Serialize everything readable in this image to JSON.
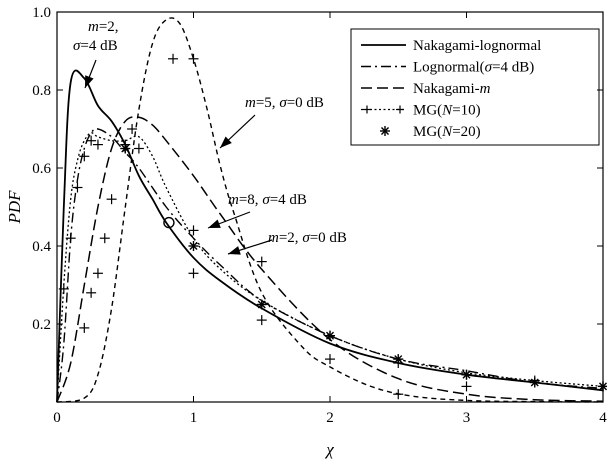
{
  "chart_data": {
    "type": "line",
    "xlabel": "χ",
    "ylabel": "PDF",
    "xlim": [
      0,
      4
    ],
    "ylim": [
      0,
      1.0
    ],
    "x_ticks": [
      "0",
      "1",
      "2",
      "3",
      "4"
    ],
    "y_ticks": [
      "0.2",
      "0.4",
      "0.6",
      "0.8",
      "1.0"
    ],
    "legend_position": "top-right",
    "legend": [
      {
        "label": "Nakagami-lognormal",
        "style": "solid"
      },
      {
        "label": "Lognormal(σ=4 dB)",
        "style": "dashdot"
      },
      {
        "label": "Nakagami-m",
        "style": "dashed"
      },
      {
        "label": "MG(N=10)",
        "style": "dotted-plus"
      },
      {
        "label": "MG(N=20)",
        "style": "asterisk"
      }
    ],
    "annotations": [
      {
        "line1": "m=2,",
        "line2": "σ=4 dB",
        "x": 0.2,
        "y": 0.83
      },
      {
        "text": "m=5, σ=0 dB",
        "x": 0.75,
        "y": 0.95
      },
      {
        "text": "m=8, σ=4 dB",
        "x": 0.82,
        "y": 0.46
      },
      {
        "text": "m=2, σ=0 dB",
        "x": 1.25,
        "y": 0.4
      }
    ],
    "series": [
      {
        "name": "Nakagami-lognormal",
        "style": "solid",
        "points": [
          [
            0,
            0
          ],
          [
            0.05,
            0.5
          ],
          [
            0.1,
            0.82
          ],
          [
            0.2,
            0.83
          ],
          [
            0.3,
            0.76
          ],
          [
            0.4,
            0.72
          ],
          [
            0.5,
            0.66
          ],
          [
            0.6,
            0.58
          ],
          [
            0.7,
            0.52
          ],
          [
            0.8,
            0.46
          ],
          [
            1.0,
            0.37
          ],
          [
            1.2,
            0.31
          ],
          [
            1.5,
            0.24
          ],
          [
            2.0,
            0.15
          ],
          [
            2.5,
            0.1
          ],
          [
            3.0,
            0.07
          ],
          [
            3.5,
            0.05
          ],
          [
            4.0,
            0.03
          ]
        ]
      },
      {
        "name": "Lognormal(σ=4 dB)",
        "style": "dashdot",
        "points": [
          [
            0,
            0
          ],
          [
            0.05,
            0.15
          ],
          [
            0.1,
            0.42
          ],
          [
            0.15,
            0.57
          ],
          [
            0.2,
            0.65
          ],
          [
            0.25,
            0.69
          ],
          [
            0.3,
            0.7
          ],
          [
            0.4,
            0.68
          ],
          [
            0.5,
            0.64
          ],
          [
            0.6,
            0.6
          ],
          [
            0.8,
            0.5
          ],
          [
            1.0,
            0.42
          ],
          [
            1.2,
            0.35
          ],
          [
            1.5,
            0.26
          ],
          [
            2.0,
            0.17
          ],
          [
            2.5,
            0.11
          ],
          [
            3.0,
            0.08
          ],
          [
            3.5,
            0.05
          ],
          [
            4.0,
            0.035
          ]
        ]
      },
      {
        "name": "Nakagami-m (m=2, σ=0 dB)",
        "style": "dashed",
        "points": [
          [
            0,
            0
          ],
          [
            0.1,
            0.1
          ],
          [
            0.2,
            0.3
          ],
          [
            0.3,
            0.5
          ],
          [
            0.4,
            0.65
          ],
          [
            0.5,
            0.72
          ],
          [
            0.6,
            0.73
          ],
          [
            0.7,
            0.71
          ],
          [
            0.8,
            0.67
          ],
          [
            1.0,
            0.58
          ],
          [
            1.2,
            0.48
          ],
          [
            1.5,
            0.34
          ],
          [
            2.0,
            0.16
          ],
          [
            2.5,
            0.06
          ],
          [
            3.0,
            0.02
          ],
          [
            3.5,
            0.006
          ],
          [
            4.0,
            0.002
          ]
        ]
      },
      {
        "name": "Nakagami-m (m=5, σ=0 dB)",
        "style": "dashed-short",
        "points": [
          [
            0,
            0
          ],
          [
            0.2,
            0.01
          ],
          [
            0.3,
            0.07
          ],
          [
            0.4,
            0.24
          ],
          [
            0.5,
            0.5
          ],
          [
            0.6,
            0.75
          ],
          [
            0.7,
            0.92
          ],
          [
            0.8,
            0.98
          ],
          [
            0.9,
            0.97
          ],
          [
            1.0,
            0.88
          ],
          [
            1.1,
            0.75
          ],
          [
            1.2,
            0.6
          ],
          [
            1.3,
            0.48
          ],
          [
            1.5,
            0.28
          ],
          [
            1.8,
            0.14
          ],
          [
            2.0,
            0.09
          ],
          [
            2.3,
            0.04
          ],
          [
            2.6,
            0.015
          ],
          [
            3.0,
            0.004
          ],
          [
            3.5,
            0.001
          ],
          [
            4.0,
            0
          ]
        ]
      },
      {
        "name": "MG(N=10)",
        "style": "dotted-plus",
        "points": [
          [
            0,
            0
          ],
          [
            0.05,
            0.3
          ],
          [
            0.1,
            0.52
          ],
          [
            0.15,
            0.62
          ],
          [
            0.2,
            0.67
          ],
          [
            0.25,
            0.69
          ],
          [
            0.3,
            0.68
          ],
          [
            0.4,
            0.67
          ],
          [
            0.5,
            0.67
          ],
          [
            0.6,
            0.68
          ],
          [
            0.7,
            0.63
          ],
          [
            0.8,
            0.55
          ],
          [
            1.0,
            0.42
          ],
          [
            1.2,
            0.34
          ],
          [
            1.5,
            0.26
          ],
          [
            2.0,
            0.17
          ],
          [
            2.5,
            0.11
          ],
          [
            3.0,
            0.075
          ],
          [
            3.5,
            0.055
          ],
          [
            4.0,
            0.04
          ]
        ]
      }
    ],
    "plus_markers": [
      [
        0.05,
        0.29
      ],
      [
        0.1,
        0.42
      ],
      [
        0.15,
        0.55
      ],
      [
        0.2,
        0.63
      ],
      [
        0.25,
        0.67
      ],
      [
        0.3,
        0.66
      ],
      [
        0.2,
        0.19
      ],
      [
        0.25,
        0.28
      ],
      [
        0.3,
        0.33
      ],
      [
        0.35,
        0.42
      ],
      [
        0.4,
        0.52
      ],
      [
        0.5,
        0.66
      ],
      [
        0.55,
        0.7
      ],
      [
        0.6,
        0.65
      ],
      [
        1.0,
        0.44
      ],
      [
        1.0,
        0.33
      ],
      [
        0.85,
        0.88
      ],
      [
        1.0,
        0.88
      ],
      [
        1.5,
        0.36
      ],
      [
        1.5,
        0.21
      ],
      [
        2.0,
        0.17
      ],
      [
        2.0,
        0.11
      ],
      [
        2.5,
        0.1
      ],
      [
        2.5,
        0.02
      ],
      [
        3.0,
        0.07
      ],
      [
        3.0,
        0.04
      ],
      [
        3.5,
        0.055
      ],
      [
        4.0,
        0.04
      ]
    ],
    "asterisk_markers": [
      [
        0.5,
        0.65
      ],
      [
        1.0,
        0.4
      ],
      [
        1.5,
        0.25
      ],
      [
        2.0,
        0.17
      ],
      [
        2.5,
        0.11
      ],
      [
        3.0,
        0.07
      ],
      [
        3.5,
        0.05
      ],
      [
        4.0,
        0.04
      ]
    ],
    "circle_marker": [
      0.82,
      0.46
    ]
  }
}
